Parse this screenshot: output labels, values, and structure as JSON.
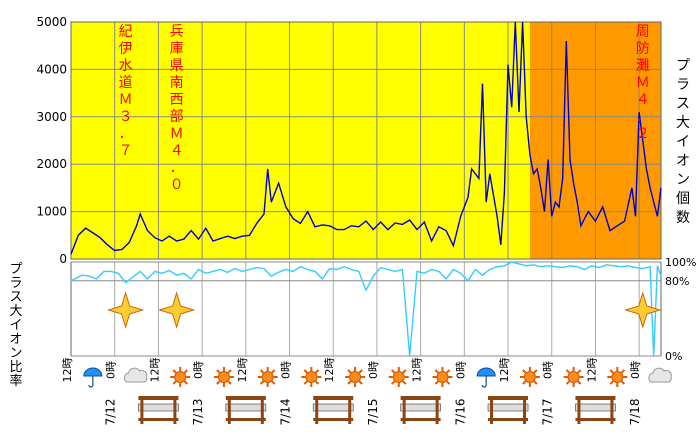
{
  "chart_data": [
    {
      "type": "line",
      "ylabel": "プラス大イオン個数",
      "ylim": [
        0,
        5000
      ],
      "yticks": [
        "0",
        "1000",
        "2000",
        "3000",
        "4000",
        "5000"
      ],
      "grid": true,
      "background": {
        "default": "#ffff00",
        "highlight": "#ff9900",
        "highlight_from_hour": 126
      },
      "x_hours_range": [
        0,
        162
      ],
      "series": [
        {
          "color": "#0000cc",
          "points": [
            [
              0,
              100
            ],
            [
              2,
              500
            ],
            [
              4,
              650
            ],
            [
              6,
              550
            ],
            [
              8,
              450
            ],
            [
              10,
              300
            ],
            [
              12,
              180
            ],
            [
              14,
              200
            ],
            [
              16,
              350
            ],
            [
              18,
              700
            ],
            [
              19,
              950
            ],
            [
              21,
              600
            ],
            [
              23,
              450
            ],
            [
              25,
              380
            ],
            [
              27,
              480
            ],
            [
              29,
              380
            ],
            [
              31,
              420
            ],
            [
              33,
              600
            ],
            [
              35,
              420
            ],
            [
              37,
              650
            ],
            [
              39,
              380
            ],
            [
              41,
              430
            ],
            [
              43,
              480
            ],
            [
              45,
              430
            ],
            [
              47,
              480
            ],
            [
              49,
              500
            ],
            [
              51,
              750
            ],
            [
              53,
              950
            ],
            [
              54,
              1900
            ],
            [
              55,
              1200
            ],
            [
              57,
              1600
            ],
            [
              59,
              1100
            ],
            [
              61,
              850
            ],
            [
              63,
              750
            ],
            [
              65,
              1000
            ],
            [
              67,
              680
            ],
            [
              69,
              720
            ],
            [
              71,
              700
            ],
            [
              73,
              620
            ],
            [
              75,
              620
            ],
            [
              77,
              700
            ],
            [
              79,
              680
            ],
            [
              81,
              800
            ],
            [
              83,
              620
            ],
            [
              85,
              780
            ],
            [
              87,
              620
            ],
            [
              89,
              760
            ],
            [
              91,
              730
            ],
            [
              93,
              820
            ],
            [
              95,
              620
            ],
            [
              97,
              780
            ],
            [
              99,
              380
            ],
            [
              101,
              680
            ],
            [
              103,
              600
            ],
            [
              105,
              280
            ],
            [
              107,
              900
            ],
            [
              109,
              1300
            ],
            [
              110,
              1900
            ],
            [
              112,
              1700
            ],
            [
              113,
              3700
            ],
            [
              114,
              1200
            ],
            [
              115,
              1800
            ],
            [
              117,
              900
            ],
            [
              118,
              300
            ],
            [
              119,
              1400
            ],
            [
              120,
              4100
            ],
            [
              121,
              3200
            ],
            [
              122,
              5000
            ],
            [
              123,
              3100
            ],
            [
              124,
              5000
            ],
            [
              125,
              3000
            ],
            [
              126,
              2200
            ],
            [
              127,
              1800
            ],
            [
              128,
              1900
            ],
            [
              129,
              1500
            ],
            [
              130,
              1000
            ],
            [
              131,
              2100
            ],
            [
              132,
              900
            ],
            [
              133,
              1200
            ],
            [
              134,
              1100
            ],
            [
              135,
              1700
            ],
            [
              136,
              4600
            ],
            [
              137,
              2100
            ],
            [
              138,
              1600
            ],
            [
              139,
              1200
            ],
            [
              140,
              700
            ],
            [
              142,
              1000
            ],
            [
              144,
              800
            ],
            [
              146,
              1100
            ],
            [
              148,
              600
            ],
            [
              150,
              700
            ],
            [
              152,
              800
            ],
            [
              154,
              1500
            ],
            [
              155,
              900
            ],
            [
              156,
              3100
            ],
            [
              157,
              2500
            ],
            [
              158,
              1900
            ],
            [
              159,
              1500
            ],
            [
              160,
              1200
            ],
            [
              161,
              900
            ],
            [
              162,
              1500
            ]
          ]
        }
      ],
      "annotations": [
        {
          "text": "紀伊水道Ｍ３．７",
          "hour": 15
        },
        {
          "text": "兵庫県南西部Ｍ４．０",
          "hour": 29
        },
        {
          "text": "周防灘Ｍ４．２",
          "hour": 157
        }
      ]
    },
    {
      "type": "line",
      "ylabel": "プラス大イオン比率",
      "ylim": [
        0,
        100
      ],
      "yticks": [
        "0%",
        "80%",
        "100%"
      ],
      "grid": true,
      "x_hours_range": [
        0,
        162
      ],
      "series": [
        {
          "color": "#33ccff",
          "points": [
            [
              0,
              80
            ],
            [
              3,
              86
            ],
            [
              5,
              85
            ],
            [
              7,
              82
            ],
            [
              9,
              90
            ],
            [
              11,
              90
            ],
            [
              13,
              88
            ],
            [
              15,
              78
            ],
            [
              17,
              84
            ],
            [
              19,
              90
            ],
            [
              21,
              82
            ],
            [
              23,
              90
            ],
            [
              25,
              88
            ],
            [
              27,
              91
            ],
            [
              29,
              86
            ],
            [
              31,
              88
            ],
            [
              33,
              82
            ],
            [
              35,
              92
            ],
            [
              37,
              88
            ],
            [
              39,
              90
            ],
            [
              41,
              92
            ],
            [
              43,
              89
            ],
            [
              45,
              93
            ],
            [
              47,
              90
            ],
            [
              49,
              92
            ],
            [
              51,
              94
            ],
            [
              53,
              93
            ],
            [
              55,
              85
            ],
            [
              57,
              89
            ],
            [
              59,
              92
            ],
            [
              61,
              90
            ],
            [
              63,
              95
            ],
            [
              65,
              92
            ],
            [
              67,
              90
            ],
            [
              69,
              82
            ],
            [
              71,
              93
            ],
            [
              73,
              92
            ],
            [
              75,
              95
            ],
            [
              77,
              92
            ],
            [
              79,
              90
            ],
            [
              81,
              70
            ],
            [
              83,
              85
            ],
            [
              85,
              94
            ],
            [
              87,
              92
            ],
            [
              89,
              90
            ],
            [
              91,
              92
            ],
            [
              93,
              0
            ],
            [
              95,
              90
            ],
            [
              97,
              88
            ],
            [
              99,
              92
            ],
            [
              101,
              90
            ],
            [
              103,
              82
            ],
            [
              105,
              92
            ],
            [
              107,
              88
            ],
            [
              109,
              80
            ],
            [
              111,
              92
            ],
            [
              113,
              86
            ],
            [
              115,
              92
            ],
            [
              117,
              95
            ],
            [
              119,
              96
            ],
            [
              121,
              100
            ],
            [
              123,
              98
            ],
            [
              125,
              96
            ],
            [
              127,
              97
            ],
            [
              129,
              95
            ],
            [
              131,
              96
            ],
            [
              133,
              95
            ],
            [
              135,
              94
            ],
            [
              137,
              96
            ],
            [
              139,
              95
            ],
            [
              141,
              92
            ],
            [
              143,
              96
            ],
            [
              145,
              94
            ],
            [
              147,
              97
            ],
            [
              149,
              96
            ],
            [
              151,
              95
            ],
            [
              153,
              96
            ],
            [
              155,
              94
            ],
            [
              157,
              93
            ],
            [
              159,
              95
            ],
            [
              160,
              0
            ],
            [
              161,
              96
            ],
            [
              162,
              85
            ]
          ]
        }
      ]
    }
  ],
  "x_axis": {
    "hour_labels": [
      {
        "hour": 0,
        "text": "12時"
      },
      {
        "hour": 12,
        "text": "0時"
      },
      {
        "hour": 24,
        "text": "12時"
      },
      {
        "hour": 36,
        "text": "0時"
      },
      {
        "hour": 48,
        "text": "12時"
      },
      {
        "hour": 60,
        "text": "0時"
      },
      {
        "hour": 72,
        "text": "12時"
      },
      {
        "hour": 84,
        "text": "0時"
      },
      {
        "hour": 96,
        "text": "12時"
      },
      {
        "hour": 108,
        "text": "0時"
      },
      {
        "hour": 120,
        "text": "12時"
      },
      {
        "hour": 132,
        "text": "0時"
      },
      {
        "hour": 144,
        "text": "12時"
      },
      {
        "hour": 156,
        "text": "0時"
      }
    ],
    "date_labels": [
      {
        "hour": 12,
        "text": "7/12"
      },
      {
        "hour": 36,
        "text": "7/13"
      },
      {
        "hour": 60,
        "text": "7/14"
      },
      {
        "hour": 84,
        "text": "7/15"
      },
      {
        "hour": 108,
        "text": "7/16"
      },
      {
        "hour": 132,
        "text": "7/17"
      },
      {
        "hour": 156,
        "text": "7/18"
      }
    ]
  },
  "weather_icons": [
    {
      "hour": 6,
      "icon": "umbrella-icon"
    },
    {
      "hour": 18,
      "icon": "cloud-icon"
    },
    {
      "hour": 30,
      "icon": "sun-icon"
    },
    {
      "hour": 42,
      "icon": "sun-icon"
    },
    {
      "hour": 54,
      "icon": "sun-icon"
    },
    {
      "hour": 66,
      "icon": "sun-icon"
    },
    {
      "hour": 78,
      "icon": "sun-icon"
    },
    {
      "hour": 90,
      "icon": "sun-icon"
    },
    {
      "hour": 102,
      "icon": "sun-icon"
    },
    {
      "hour": 114,
      "icon": "umbrella-icon"
    },
    {
      "hour": 126,
      "icon": "sun-icon"
    },
    {
      "hour": 138,
      "icon": "sun-icon"
    },
    {
      "hour": 150,
      "icon": "sun-icon"
    },
    {
      "hour": 162,
      "icon": "cloud-icon"
    }
  ],
  "holiday_icons": [
    {
      "hour": 24,
      "icon": "holiday-gate-icon"
    },
    {
      "hour": 48,
      "icon": "holiday-gate-icon"
    },
    {
      "hour": 72,
      "icon": "holiday-gate-icon"
    },
    {
      "hour": 96,
      "icon": "holiday-gate-icon"
    },
    {
      "hour": 120,
      "icon": "holiday-gate-icon"
    },
    {
      "hour": 144,
      "icon": "holiday-gate-icon"
    }
  ],
  "earthquake_markers": [
    {
      "hour": 15,
      "icon": "earthquake-star-icon"
    },
    {
      "hour": 29,
      "icon": "earthquake-star-icon"
    },
    {
      "hour": 157,
      "icon": "earthquake-star-icon"
    }
  ]
}
